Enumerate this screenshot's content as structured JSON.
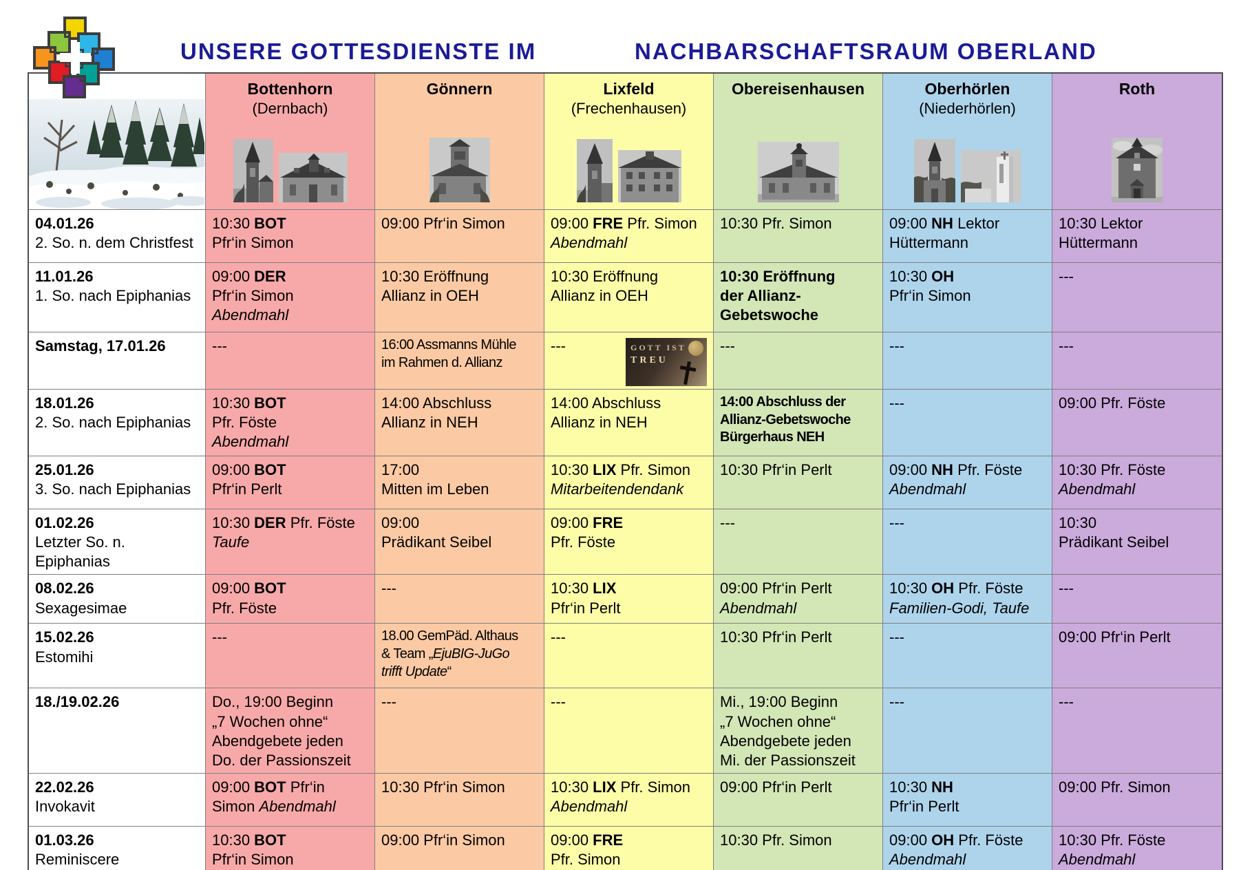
{
  "title": {
    "line1": "UNSERE GOTTESDIENSTE IM",
    "line2": "NACHBARSCHAFTSRAUM OBERLAND",
    "color": "#1b1b96"
  },
  "logo": {
    "name": "nachbarschaftsraum-cross-logo",
    "square_colors": [
      "#f4d500",
      "#8cc63f",
      "#2eb6e8",
      "#f7941d",
      "#1f7fd0",
      "#e31b23",
      "#00a196",
      "#662d91"
    ]
  },
  "header_photo": "winter-forest-photo",
  "badge": {
    "line1": "GOTT IST",
    "line2": "TREU"
  },
  "schedule": {
    "locations": [
      {
        "name": "Bottenhorn",
        "subname": "(Dernbach)",
        "color": "#f7a9a9",
        "photo_count": 2
      },
      {
        "name": "Gönnern",
        "subname": "",
        "color": "#fbcaa4",
        "photo_count": 1
      },
      {
        "name": "Lixfeld",
        "subname": "(Frechenhausen)",
        "color": "#fdfda8",
        "photo_count": 2
      },
      {
        "name": "Obereisenhausen",
        "subname": "",
        "color": "#d3e6b6",
        "photo_count": 1
      },
      {
        "name": "Oberhörlen",
        "subname": "(Niederhörlen)",
        "color": "#aed4ec",
        "photo_count": 2
      },
      {
        "name": "Roth",
        "subname": "",
        "color": "#cbaadc",
        "photo_count": 1
      }
    ],
    "rows": [
      {
        "date": "04.01.26",
        "sub": "2. So. n. dem Christfest",
        "cells": [
          "10:30 **BOT**\nPfr‘in Simon",
          "09:00 Pfr‘in Simon",
          "09:00 **FRE** Pfr. Simon\n*Abendmahl*",
          "10:30 Pfr. Simon",
          "09:00 **NH** Lektor\nHüttermann",
          "10:30 Lektor\nHüttermann"
        ]
      },
      {
        "date": "11.01.26",
        "sub": "1. So. nach Epiphanias",
        "cells": [
          "09:00 **DER**\nPfr‘in Simon\n*Abendmahl*",
          "10:30 Eröffnung\nAllianz in OEH",
          "10:30 Eröffnung\nAllianz in OEH",
          "**10:30 Eröffnung\nder Allianz-\nGebetswoche**",
          "10:30 **OH**\nPfr‘in Simon",
          "---"
        ]
      },
      {
        "date": "Samstag, 17.01.26",
        "sub": "",
        "cells": [
          "---",
          {
            "text": "16:00 Assmanns Mühle\nim Rahmen d. Allianz",
            "condensed": true
          },
          {
            "text": "---",
            "badge": true
          },
          "---",
          "---",
          "---"
        ]
      },
      {
        "date": "18.01.26",
        "sub": "2. So. nach Epiphanias",
        "cells": [
          "10:30 **BOT**\nPfr. Föste\n*Abendmahl*",
          "14:00 Abschluss\nAllianz in NEH",
          "14:00 Abschluss\nAllianz in NEH",
          {
            "text": "**14:00 Abschluss der\nAllianz-Gebetswoche\nBürgerhaus NEH**",
            "condensed": true
          },
          "---",
          "09:00 Pfr. Föste"
        ]
      },
      {
        "date": "25.01.26",
        "sub": "3. So. nach Epiphanias",
        "cells": [
          "09:00 **BOT**\nPfr‘in Perlt",
          "17:00\nMitten im Leben",
          "10:30 **LIX** Pfr. Simon\n*Mitarbeitendendank*",
          "10:30 Pfr‘in Perlt",
          "09:00 **NH** Pfr. Föste\n*Abendmahl*",
          "10:30 Pfr. Föste\n*Abendmahl*"
        ]
      },
      {
        "date": "01.02.26",
        "sub": "Letzter So. n. Epiphanias",
        "cells": [
          "10:30 **DER** Pfr. Föste\n*Taufe*",
          "09:00\nPrädikant Seibel",
          "09:00 **FRE**\nPfr. Föste",
          "---",
          "---",
          "10:30\nPrädikant Seibel"
        ]
      },
      {
        "date": "08.02.26",
        "sub": "Sexagesimae",
        "cells": [
          "09:00 **BOT**\nPfr. Föste",
          "---",
          "10:30 **LIX**\nPfr‘in Perlt",
          "09:00 Pfr‘in Perlt\n*Abendmahl*",
          "10:30 **OH** Pfr. Föste\n*Familien-Godi, Taufe*",
          "---"
        ]
      },
      {
        "date": "15.02.26",
        "sub": "Estomihi",
        "cells": [
          "---",
          {
            "text": "18.00 GemPäd. Althaus\n& Team „*EjuBIG-JuGo\ntrifft Update*“",
            "condensed": true
          },
          "---",
          "10:30 Pfr‘in Perlt",
          "---",
          "09:00 Pfr‘in Perlt"
        ]
      },
      {
        "date": "18./19.02.26",
        "sub": "",
        "cells": [
          "Do., 19:00 Beginn\n„7 Wochen ohne“\nAbendgebete jeden\nDo. der Passionszeit",
          "---",
          "---",
          "Mi., 19:00 Beginn\n„7 Wochen ohne“\nAbendgebete jeden\nMi. der Passionszeit",
          "---",
          "---"
        ]
      },
      {
        "date": "22.02.26",
        "sub": "Invokavit",
        "cells": [
          "09:00 **BOT** Pfr‘in\nSimon *Abendmahl*",
          "10:30 Pfr‘in Simon",
          "10:30 **LIX** Pfr. Simon\n*Abendmahl*",
          "09:00 Pfr‘in Perlt",
          "10:30 **NH**\nPfr‘in Perlt",
          "09:00 Pfr. Simon"
        ]
      },
      {
        "date": "01.03.26",
        "sub": "Reminiscere",
        "cells": [
          "10:30 **BOT**\nPfr‘in Simon",
          "09:00 Pfr‘in Simon",
          "09:00 **FRE**\nPfr. Simon",
          "10:30 Pfr. Simon",
          "09:00 **OH** Pfr. Föste\n*Abendmahl*",
          "10:30 Pfr. Föste\n*Abendmahl*"
        ]
      }
    ]
  }
}
